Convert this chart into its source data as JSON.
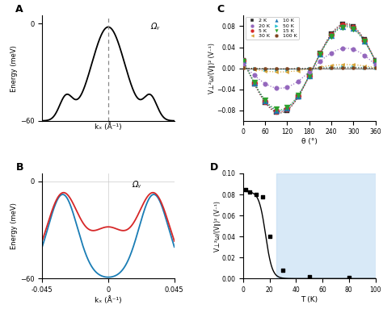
{
  "panel_A": {
    "label": "A",
    "annotation": "Ωᵧ",
    "ylabel": "Energy (meV)",
    "xlabel": "kₓ (Å⁻¹)",
    "ylim": [
      -60,
      5
    ],
    "yticks": [
      -60,
      0
    ],
    "dashed_x": 0.0,
    "band_color": "#000000",
    "xlim": [
      -0.18,
      0.18
    ]
  },
  "panel_B": {
    "label": "B",
    "annotation": "Ωᵧ",
    "ylabel": "Energy (meV)",
    "xlabel": "kₓ (Å⁻¹)",
    "ylim": [
      -60,
      5
    ],
    "yticks": [
      -60,
      0
    ],
    "xlim": [
      -0.045,
      0.045
    ],
    "xticks": [
      -0.045,
      0,
      0.045
    ],
    "band_color_blue": "#1a7db5",
    "band_color_red": "#d62728"
  },
  "panel_C": {
    "label": "C",
    "ylabel": "V⊥²ω/(V∥)² (V⁻¹)",
    "xlabel": "θ (°)",
    "ylim": [
      -0.1,
      0.1
    ],
    "yticks": [
      -0.08,
      -0.04,
      0.0,
      0.04,
      0.08
    ],
    "xlim": [
      0,
      360
    ],
    "xticks": [
      0,
      60,
      120,
      180,
      240,
      300,
      360
    ],
    "temperatures": [
      2,
      5,
      10,
      15,
      20,
      30,
      50,
      100
    ],
    "temp_colors": [
      "#2b2b2b",
      "#d62728",
      "#1f77b4",
      "#2ca02c",
      "#9467bd",
      "#d4a030",
      "#17becf",
      "#7f4420"
    ],
    "temp_markers": [
      "s",
      "o",
      "^",
      "v",
      "o",
      "<",
      ">",
      "o"
    ],
    "amplitudes": [
      0.085,
      0.083,
      0.081,
      0.079,
      0.038,
      0.007,
      0.002,
      0.001
    ],
    "theta_points": [
      0,
      30,
      60,
      90,
      120,
      150,
      180,
      210,
      240,
      270,
      300,
      330,
      360
    ],
    "phase_deg": 60
  },
  "panel_D": {
    "label": "D",
    "ylabel": "V⊥²ω/(V∥)² (V⁻¹)",
    "xlabel": "T (K)",
    "ylim": [
      0,
      0.1
    ],
    "yticks": [
      0.0,
      0.02,
      0.04,
      0.06,
      0.08,
      0.1
    ],
    "xlim": [
      0,
      100
    ],
    "xticks": [
      0,
      20,
      40,
      60,
      80,
      100
    ],
    "T_data": [
      2,
      5,
      10,
      15,
      20,
      30,
      50,
      80
    ],
    "amp_data": [
      0.085,
      0.082,
      0.08,
      0.078,
      0.04,
      0.008,
      0.002,
      0.001
    ],
    "shading_start": 25,
    "shading_color": "#c8e0f4",
    "marker_color": "#000000",
    "line_color": "#000000"
  }
}
